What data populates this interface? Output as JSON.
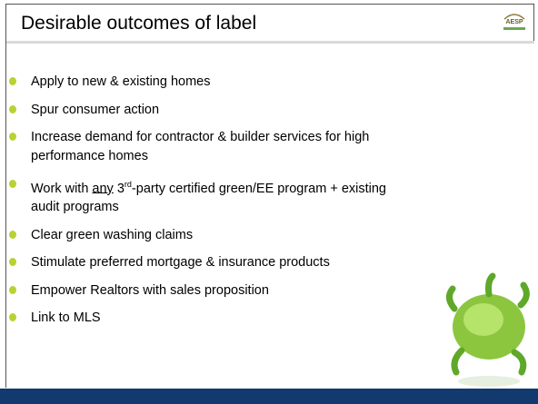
{
  "header": {
    "title": "Desirable outcomes of label",
    "logo": "AESP"
  },
  "bullets": [
    {
      "text": "Apply to new & existing homes"
    },
    {
      "text": "Spur consumer action"
    },
    {
      "text": "Increase demand for contractor & builder services for high performance homes"
    },
    {
      "parts": [
        "Work with ",
        "any",
        " 3",
        "rd",
        "-party certified green/EE program + existing audit programs"
      ]
    },
    {
      "text": "Clear green washing claims"
    },
    {
      "text": "Stimulate preferred mortgage & insurance products"
    },
    {
      "text": "Empower Realtors with sales proposition"
    },
    {
      "text": "Link to MLS"
    }
  ]
}
